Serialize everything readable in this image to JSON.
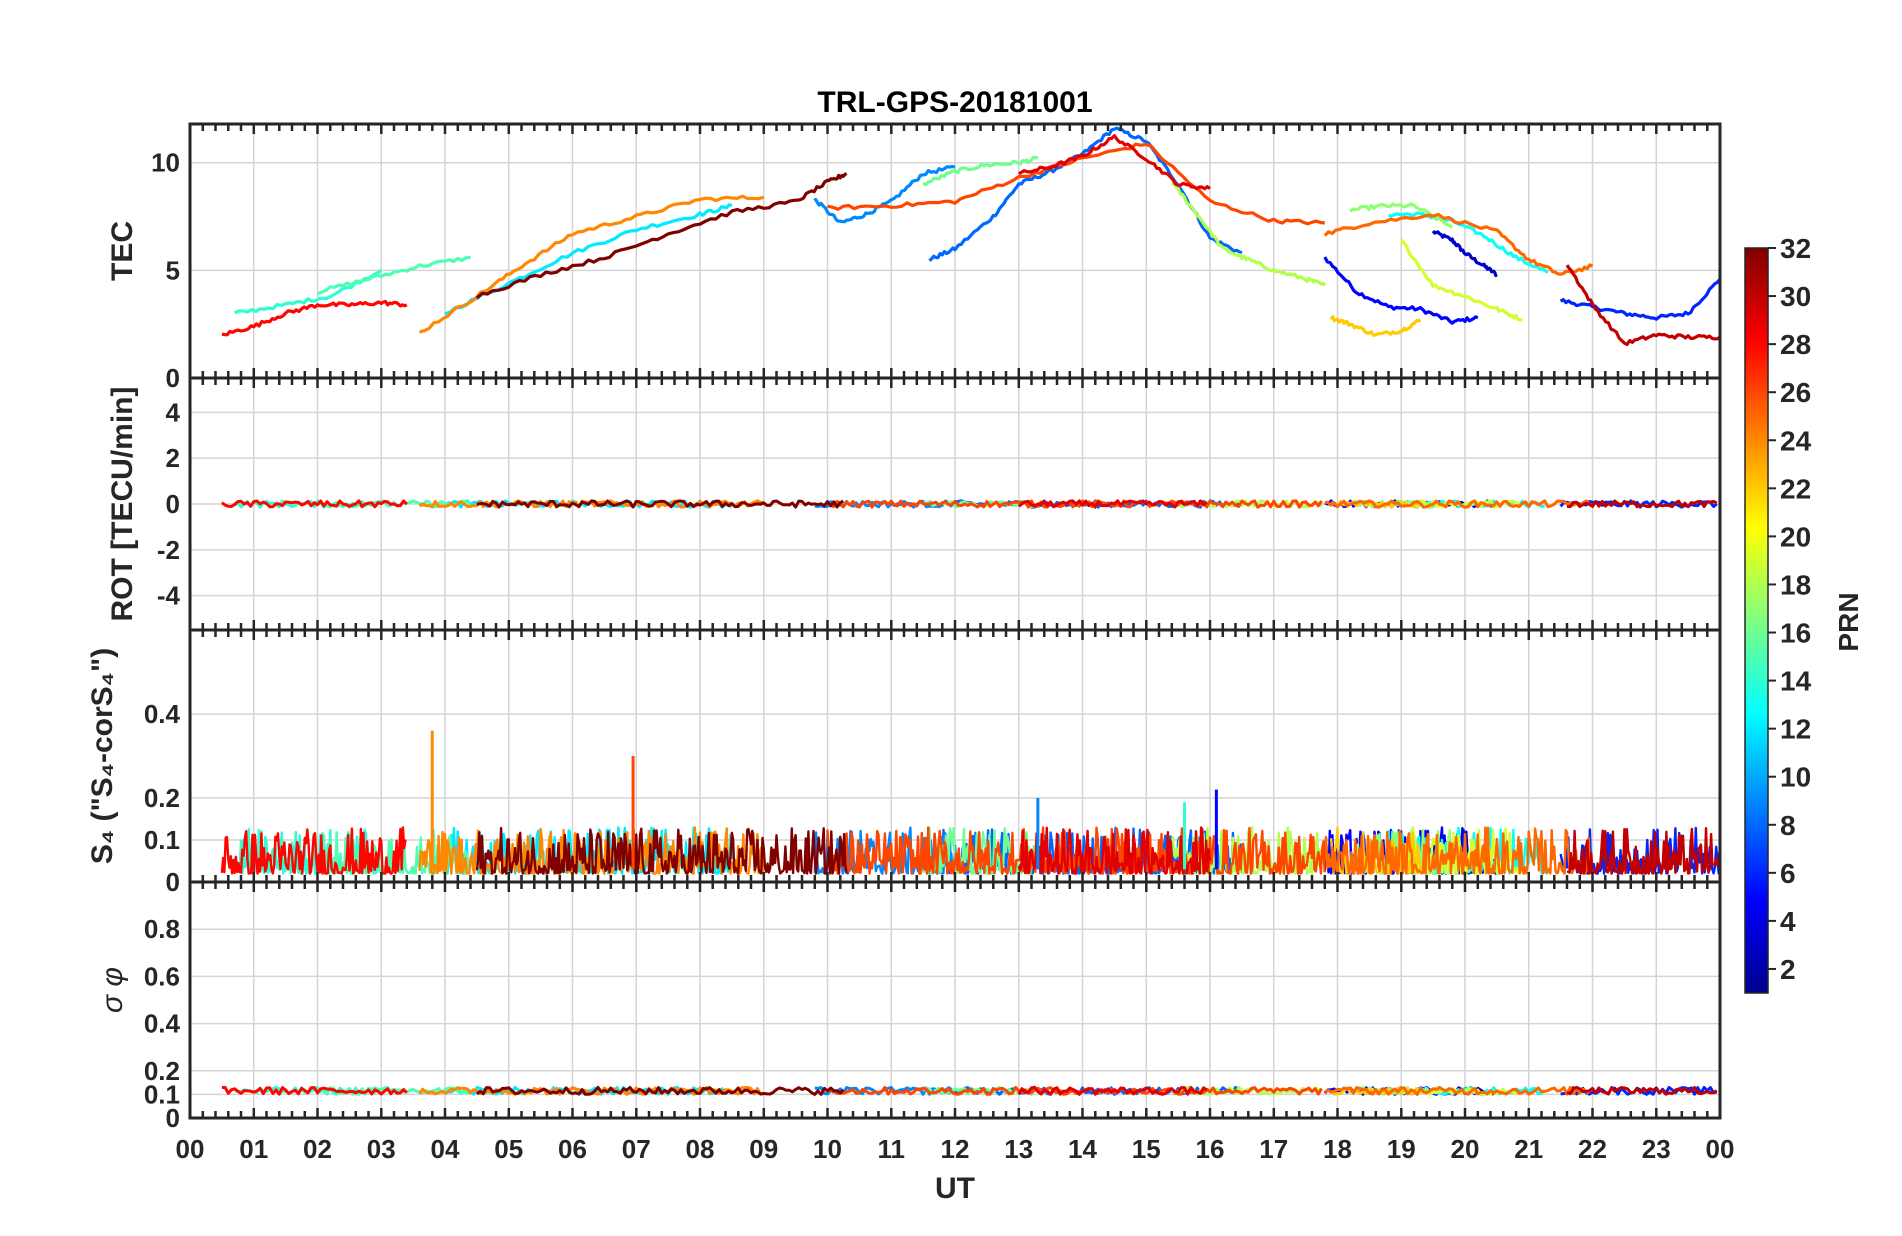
{
  "chart_data": {
    "type": "line",
    "title": "TRL-GPS-20181001",
    "x_label": "UT",
    "x_range": [
      0,
      24
    ],
    "x_ticks": [
      "00",
      "01",
      "02",
      "03",
      "04",
      "05",
      "06",
      "07",
      "08",
      "09",
      "10",
      "11",
      "12",
      "13",
      "14",
      "15",
      "16",
      "17",
      "18",
      "19",
      "20",
      "21",
      "22",
      "23",
      "00"
    ],
    "grid": true,
    "colorbar": {
      "label": "PRN",
      "range": [
        1,
        32
      ],
      "ticks": [
        "2",
        "4",
        "6",
        "8",
        "10",
        "12",
        "14",
        "16",
        "18",
        "20",
        "22",
        "24",
        "26",
        "28",
        "30",
        "32"
      ],
      "colormap": [
        "#00008f",
        "#0000ff",
        "#0080ff",
        "#00ffff",
        "#80ff80",
        "#ffff00",
        "#ff8000",
        "#ff0000",
        "#800000"
      ]
    },
    "panels": [
      {
        "ylabel": "TEC",
        "ylim": [
          0,
          11.8
        ],
        "yticks": [
          "0",
          "5",
          "10"
        ],
        "series": [
          {
            "prn": 3,
            "x": [
              19.5,
              19.8,
              20.0,
              20.3,
              20.5
            ],
            "y": [
              6.8,
              6.4,
              5.8,
              5.2,
              4.8
            ]
          },
          {
            "prn": 5,
            "x": [
              17.8,
              18.3,
              18.8,
              19.3,
              19.8,
              20.2
            ],
            "y": [
              5.6,
              4.0,
              3.3,
              3.2,
              2.6,
              2.8
            ]
          },
          {
            "prn": 6,
            "x": [
              21.5,
              22.0,
              22.5,
              23.0,
              23.5,
              24.0
            ],
            "y": [
              3.6,
              3.3,
              3.0,
              2.8,
              3.0,
              4.6
            ]
          },
          {
            "prn": 8,
            "x": [
              11.6,
              12.0,
              12.6,
              13.0,
              13.5,
              14.0,
              14.5,
              15.0,
              15.5,
              16.0,
              16.5
            ],
            "y": [
              5.5,
              6.0,
              7.5,
              9.0,
              9.6,
              10.4,
              11.6,
              11.0,
              9.0,
              6.5,
              5.8
            ]
          },
          {
            "prn": 9,
            "x": [
              9.8,
              10.2,
              10.6,
              11.0,
              11.5,
              12.0
            ],
            "y": [
              8.3,
              7.2,
              7.6,
              8.2,
              9.5,
              9.8
            ]
          },
          {
            "prn": 12,
            "x": [
              4.0,
              5.0,
              6.0,
              7.0,
              8.0,
              8.5
            ],
            "y": [
              3.0,
              4.4,
              5.8,
              6.9,
              7.6,
              8.0
            ]
          },
          {
            "prn": 13,
            "x": [
              18.8,
              19.3,
              19.8,
              20.3,
              20.8,
              21.3
            ],
            "y": [
              7.6,
              7.6,
              7.3,
              6.6,
              5.6,
              4.9
            ]
          },
          {
            "prn": 14,
            "x": [
              0.7,
              1.5,
              2.2,
              3.0
            ],
            "y": [
              3.0,
              3.4,
              3.8,
              5.0
            ]
          },
          {
            "prn": 15,
            "x": [
              2.0,
              2.8,
              3.6,
              4.4
            ],
            "y": [
              4.0,
              4.6,
              5.2,
              5.6
            ]
          },
          {
            "prn": 16,
            "x": [
              11.5,
              12.0,
              12.5,
              13.0,
              13.3
            ],
            "y": [
              9.0,
              9.6,
              9.9,
              10.0,
              10.2
            ]
          },
          {
            "prn": 17,
            "x": [
              18.2,
              18.7,
              19.2,
              19.8
            ],
            "y": [
              7.8,
              8.0,
              8.0,
              7.0
            ]
          },
          {
            "prn": 18,
            "x": [
              15.4,
              15.8,
              16.2,
              16.6,
              17.0,
              17.5,
              17.8
            ],
            "y": [
              9.1,
              7.6,
              6.0,
              5.5,
              5.0,
              4.6,
              4.3
            ]
          },
          {
            "prn": 19,
            "x": [
              19.0,
              19.5,
              20.0,
              20.5,
              20.9
            ],
            "y": [
              6.4,
              4.3,
              3.8,
              3.2,
              2.7
            ]
          },
          {
            "prn": 22,
            "x": [
              17.9,
              18.2,
              18.6,
              19.0,
              19.3
            ],
            "y": [
              2.8,
              2.5,
              2.0,
              2.2,
              2.7
            ]
          },
          {
            "prn": 24,
            "x": [
              3.6,
              4.5,
              5.2,
              6.0,
              7.0,
              8.0,
              9.0
            ],
            "y": [
              2.1,
              3.8,
              5.2,
              6.7,
              7.5,
              8.3,
              8.4
            ]
          },
          {
            "prn": 25,
            "x": [
              17.8,
              18.5,
              19.5,
              20.5,
              21.0,
              21.5,
              22.0
            ],
            "y": [
              6.7,
              7.2,
              7.6,
              6.8,
              5.5,
              4.8,
              5.2
            ]
          },
          {
            "prn": 26,
            "x": [
              10.0,
              11.0,
              12.0,
              13.0,
              14.0,
              15.0,
              16.0,
              17.0,
              17.8
            ],
            "y": [
              7.9,
              8.0,
              8.2,
              9.3,
              10.2,
              10.9,
              8.2,
              7.3,
              7.2
            ]
          },
          {
            "prn": 28,
            "x": [
              0.5,
              1.0,
              1.5,
              2.0,
              2.5,
              3.0,
              3.4
            ],
            "y": [
              2.0,
              2.4,
              3.0,
              3.4,
              3.4,
              3.5,
              3.4
            ]
          },
          {
            "prn": 29,
            "x": [
              13.0,
              13.5,
              14.0,
              14.5,
              15.0,
              15.5,
              16.0
            ],
            "y": [
              9.5,
              9.8,
              10.3,
              11.2,
              10.2,
              9.0,
              8.8
            ]
          },
          {
            "prn": 30,
            "x": [
              21.6,
              22.0,
              22.5,
              23.0,
              23.5,
              24.0
            ],
            "y": [
              5.3,
              3.4,
              1.6,
              2.0,
              1.9,
              1.9
            ]
          },
          {
            "prn": 32,
            "x": [
              4.5,
              5.5,
              6.5,
              7.5,
              8.5,
              9.5,
              10.0,
              10.3
            ],
            "y": [
              3.8,
              4.8,
              5.6,
              6.7,
              7.7,
              8.2,
              9.1,
              9.5
            ]
          }
        ]
      },
      {
        "ylabel": "ROT [TECU/min]",
        "ylim": [
          -5.5,
          5.5
        ],
        "yticks": [
          "-4",
          "-2",
          "0",
          "2",
          "4"
        ]
      },
      {
        "ylabel": "S₄ (\"S₄-corS₄\")",
        "ylim": [
          0,
          0.6
        ],
        "yticks": [
          "0",
          "0.1",
          "0.2",
          "0.4"
        ],
        "spikes": [
          {
            "prn": 24,
            "x": 3.8,
            "y": 0.36
          },
          {
            "prn": 26,
            "x": 6.95,
            "y": 0.3
          },
          {
            "prn": 5,
            "x": 16.1,
            "y": 0.22
          },
          {
            "prn": 9,
            "x": 13.3,
            "y": 0.2
          },
          {
            "prn": 14,
            "x": 15.6,
            "y": 0.19
          }
        ]
      },
      {
        "ylabel": "σ φ",
        "ylim": [
          0,
          1.0
        ],
        "yticks": [
          "0",
          "0.1",
          "0.2",
          "0.4",
          "0.6",
          "0.8"
        ]
      }
    ]
  }
}
